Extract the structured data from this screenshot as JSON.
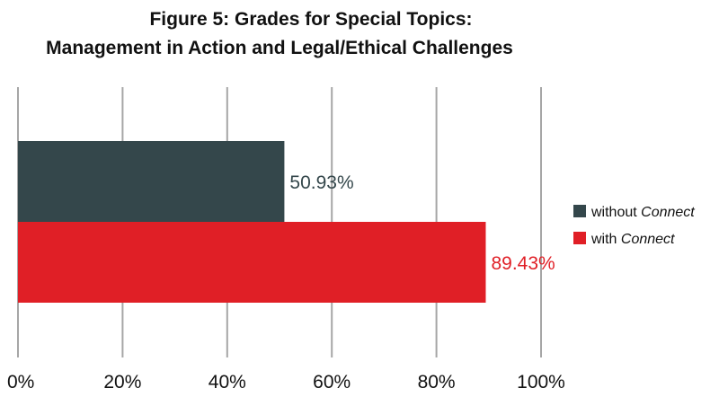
{
  "chart_data": {
    "type": "bar",
    "orientation": "horizontal",
    "title": "Figure 5: Grades for Special Topics:",
    "subtitle": "Management in Action and Legal/Ethical Challenges",
    "series": [
      {
        "name": "without Connect",
        "name_plain": "without ",
        "name_em": "Connect",
        "value": 50.93,
        "label": "50.93%",
        "color": "#34474b"
      },
      {
        "name": "with Connect",
        "name_plain": "with ",
        "name_em": "Connect",
        "value": 89.43,
        "label": "89.43%",
        "color": "#e01f26"
      }
    ],
    "xlim": [
      0,
      100
    ],
    "x_ticks": [
      "0%",
      "20%",
      "40%",
      "60%",
      "80%",
      "100%"
    ],
    "grid": true,
    "legend": "right"
  }
}
